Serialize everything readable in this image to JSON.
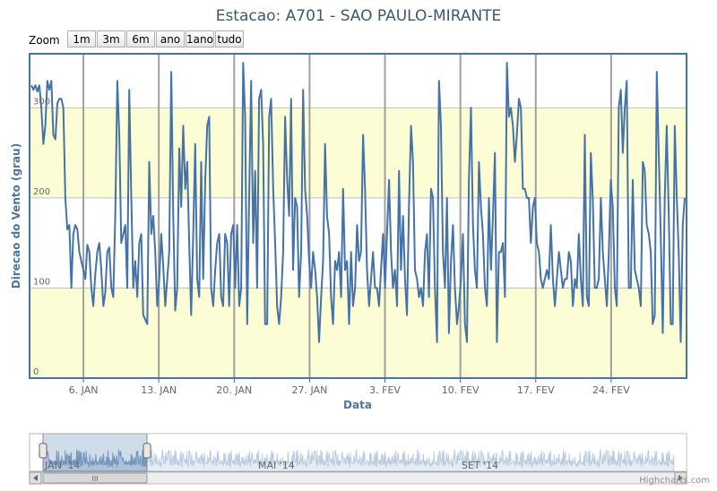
{
  "chart_data": {
    "type": "line",
    "title": "Estacao: A701 - SAO PAULO-MIRANTE",
    "xlabel": "Data",
    "ylabel": "Direcao do Vento (grau)",
    "ylim": [
      0,
      360
    ],
    "y_ticks": [
      "0",
      "100",
      "200",
      "300"
    ],
    "x_ticks": [
      "6. JAN",
      "13. JAN",
      "20. JAN",
      "27. JAN",
      "3. FEV",
      "10. FEV",
      "17. FEV",
      "24. FEV"
    ],
    "x_start": "2014-01-01",
    "x_end": "2014-03-03",
    "grid": true,
    "series": [
      {
        "color": "#4572a7",
        "values": [
          325,
          320,
          325,
          318,
          325,
          300,
          260,
          280,
          330,
          320,
          330,
          270,
          265,
          305,
          310,
          310,
          300,
          200,
          165,
          170,
          100,
          160,
          170,
          165,
          140,
          130,
          120,
          110,
          148,
          140,
          100,
          80,
          115,
          140,
          150,
          120,
          80,
          95,
          140,
          145,
          100,
          90,
          180,
          330,
          270,
          150,
          160,
          170,
          100,
          320,
          200,
          100,
          130,
          90,
          150,
          160,
          70,
          65,
          60,
          240,
          160,
          180,
          140,
          80,
          110,
          160,
          125,
          80,
          110,
          140,
          340,
          180,
          75,
          100,
          255,
          190,
          280,
          210,
          240,
          150,
          70,
          160,
          260,
          110,
          90,
          240,
          110,
          220,
          280,
          290,
          100,
          80,
          120,
          150,
          160,
          90,
          80,
          160,
          150,
          80,
          160,
          170,
          100,
          170,
          80,
          100,
          350,
          290,
          60,
          200,
          330,
          150,
          230,
          100,
          310,
          320,
          260,
          60,
          60,
          290,
          310,
          210,
          150,
          80,
          60,
          90,
          140,
          290,
          220,
          180,
          310,
          120,
          200,
          190,
          90,
          140,
          320,
          210,
          180,
          130,
          100,
          140,
          120,
          90,
          40,
          90,
          130,
          260,
          180,
          160,
          90,
          60,
          130,
          120,
          140,
          90,
          210,
          120,
          130,
          60,
          140,
          80,
          100,
          170,
          130,
          140,
          270,
          210,
          120,
          80,
          110,
          140,
          100,
          100,
          80,
          120,
          160,
          100,
          160,
          220,
          140,
          100,
          120,
          80,
          230,
          120,
          180,
          110,
          70,
          190,
          280,
          240,
          120,
          110,
          90,
          100,
          80,
          140,
          160,
          90,
          210,
          200,
          100,
          40,
          330,
          280,
          140,
          100,
          200,
          50,
          130,
          170,
          100,
          60,
          80,
          110,
          160,
          60,
          40,
          220,
          300,
          170,
          120,
          100,
          240,
          190,
          160,
          100,
          80,
          200,
          120,
          180,
          250,
          40,
          140,
          140,
          150,
          90,
          350,
          290,
          300,
          280,
          240,
          270,
          310,
          300,
          210,
          210,
          200,
          200,
          150,
          190,
          200,
          150,
          140,
          110,
          100,
          110,
          120,
          110,
          170,
          110,
          80,
          110,
          140,
          120,
          100,
          110,
          110,
          140,
          130,
          80,
          110,
          100,
          160,
          110,
          80,
          270,
          90,
          80,
          250,
          200,
          100,
          100,
          110,
          200,
          140,
          110,
          80,
          140,
          220,
          190,
          100,
          80,
          300,
          320,
          250,
          300,
          330,
          100,
          100,
          220,
          120,
          110,
          100,
          80,
          240,
          230,
          170,
          160,
          140,
          60,
          70,
          340,
          250,
          160,
          50,
          200,
          280,
          180,
          60,
          60,
          280,
          200,
          140,
          40,
          170,
          200
        ]
      }
    ]
  },
  "ui": {
    "zoom_label": "Zoom",
    "zoom_buttons": [
      "1m",
      "3m",
      "6m",
      "ano",
      "1ano",
      "tudo"
    ],
    "navigator_labels": [
      "JAN '14",
      "MAI '14",
      "SET '14"
    ],
    "scrollbar_grip": "III",
    "credits": "Highcharts.com"
  }
}
